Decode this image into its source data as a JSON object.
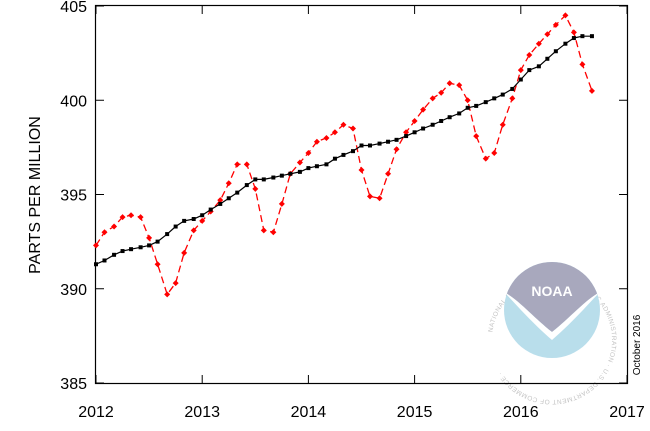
{
  "chart_data": {
    "type": "line",
    "title": "",
    "xlabel": "",
    "ylabel": "PARTS PER MILLION",
    "xlim": [
      2012,
      2017
    ],
    "ylim": [
      385,
      405
    ],
    "xticks": [
      2012,
      2013,
      2014,
      2015,
      2016,
      2017
    ],
    "yticks": [
      385,
      390,
      395,
      400,
      405
    ],
    "date_note": "October 2016",
    "grid": false,
    "series": [
      {
        "color": "#ff0000",
        "line_style": "dashed",
        "marker": "diamond",
        "x": [
          2012.0,
          2012.08,
          2012.17,
          2012.25,
          2012.33,
          2012.42,
          2012.5,
          2012.58,
          2012.67,
          2012.75,
          2012.83,
          2012.92,
          2013.0,
          2013.08,
          2013.17,
          2013.25,
          2013.33,
          2013.42,
          2013.5,
          2013.58,
          2013.67,
          2013.75,
          2013.83,
          2013.92,
          2014.0,
          2014.08,
          2014.17,
          2014.25,
          2014.33,
          2014.42,
          2014.5,
          2014.58,
          2014.67,
          2014.75,
          2014.83,
          2014.92,
          2015.0,
          2015.08,
          2015.17,
          2015.25,
          2015.33,
          2015.42,
          2015.5,
          2015.58,
          2015.67,
          2015.75,
          2015.83,
          2015.92,
          2016.0,
          2016.08,
          2016.17,
          2016.25,
          2016.33,
          2016.42,
          2016.5,
          2016.58,
          2016.67
        ],
        "y": [
          392.3,
          393.0,
          393.3,
          393.8,
          393.9,
          393.8,
          392.7,
          391.3,
          389.7,
          390.3,
          391.9,
          393.1,
          393.6,
          394.1,
          394.7,
          395.6,
          396.6,
          396.6,
          395.3,
          393.1,
          393.0,
          394.5,
          396.1,
          396.7,
          397.2,
          397.8,
          398.0,
          398.3,
          398.7,
          398.5,
          396.3,
          394.9,
          394.8,
          396.1,
          397.4,
          398.3,
          398.9,
          399.5,
          400.1,
          400.4,
          400.9,
          400.8,
          400.0,
          398.1,
          396.9,
          397.2,
          398.7,
          400.1,
          401.6,
          402.4,
          403.0,
          403.5,
          404.0,
          404.5,
          403.6,
          401.9,
          400.5
        ]
      },
      {
        "color": "#000000",
        "line_style": "solid",
        "marker": "square",
        "x": [
          2012.0,
          2012.08,
          2012.17,
          2012.25,
          2012.33,
          2012.42,
          2012.5,
          2012.58,
          2012.67,
          2012.75,
          2012.83,
          2012.92,
          2013.0,
          2013.08,
          2013.17,
          2013.25,
          2013.33,
          2013.42,
          2013.5,
          2013.58,
          2013.67,
          2013.75,
          2013.83,
          2013.92,
          2014.0,
          2014.08,
          2014.17,
          2014.25,
          2014.33,
          2014.42,
          2014.5,
          2014.58,
          2014.67,
          2014.75,
          2014.83,
          2014.92,
          2015.0,
          2015.08,
          2015.17,
          2015.25,
          2015.33,
          2015.42,
          2015.5,
          2015.58,
          2015.67,
          2015.75,
          2015.83,
          2015.92,
          2016.0,
          2016.08,
          2016.17,
          2016.25,
          2016.33,
          2016.42,
          2016.5,
          2016.58,
          2016.67
        ],
        "y": [
          391.3,
          391.5,
          391.8,
          392.0,
          392.1,
          392.2,
          392.3,
          392.5,
          392.9,
          393.3,
          393.6,
          393.7,
          393.9,
          394.2,
          394.5,
          394.8,
          395.1,
          395.5,
          395.8,
          395.8,
          395.9,
          396.0,
          396.1,
          396.2,
          396.4,
          396.5,
          396.6,
          396.9,
          397.1,
          397.3,
          397.6,
          397.6,
          397.7,
          397.8,
          397.9,
          398.1,
          398.3,
          398.5,
          398.7,
          398.9,
          399.1,
          399.3,
          399.6,
          399.7,
          399.9,
          400.1,
          400.3,
          400.6,
          401.1,
          401.6,
          401.8,
          402.2,
          402.6,
          403.0,
          403.3,
          403.4,
          403.4
        ]
      }
    ]
  },
  "watermark": {
    "logo_text": "NOAA",
    "ring_text": "NATIONAL OCEANIC AND ATMOSPHERIC ADMINISTRATION · U.S. DEPARTMENT OF COMMERCE ·"
  }
}
